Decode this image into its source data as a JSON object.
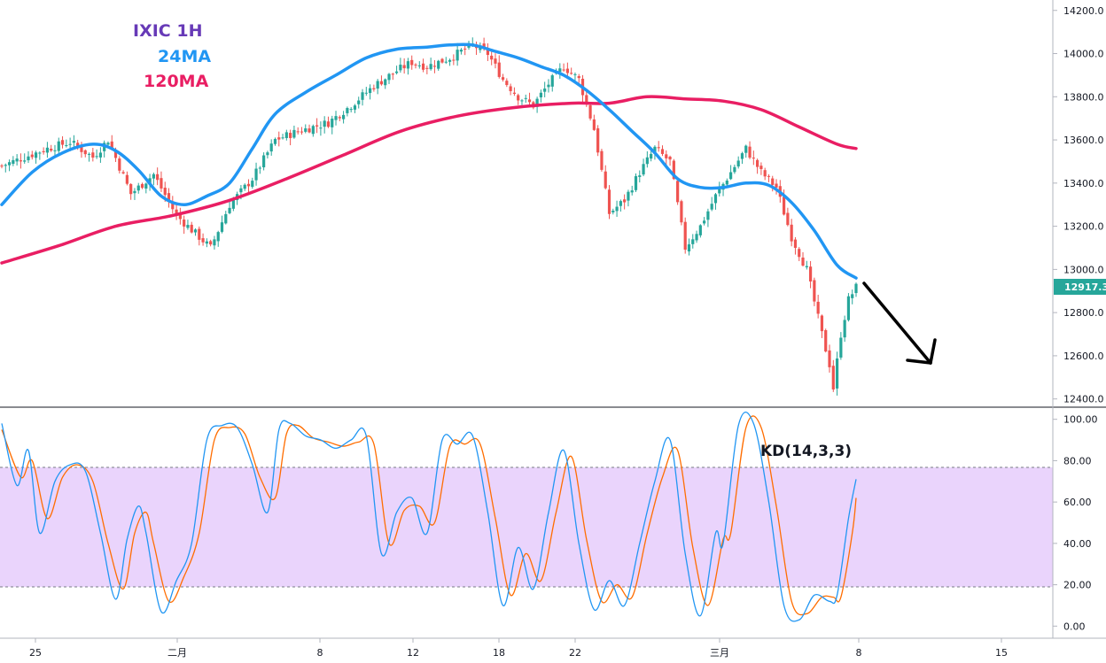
{
  "colors": {
    "up": "#26a69a",
    "down": "#ef5350",
    "ma24": "#2196f3",
    "ma120": "#e91e63",
    "k_line": "#2196f3",
    "d_line": "#ff6d00",
    "kd_band": "#e3c5fb",
    "title": "#673ab7",
    "price_tag": "#26a69a",
    "arrow": "#000000"
  },
  "chart_data": [
    {
      "type": "candlestick",
      "title": "IXIC 1H",
      "legend": [
        {
          "label": "IXIC 1H",
          "color": "#673ab7"
        },
        {
          "label": "24MA",
          "color": "#2196f3"
        },
        {
          "label": "120MA",
          "color": "#e91e63"
        }
      ],
      "legend_position": "top-left",
      "ylim": [
        12370,
        14240
      ],
      "y_ticks": [
        "12400.0",
        "12600.0",
        "12800.0",
        "13000.0",
        "13200.0",
        "13400.0",
        "13600.0",
        "13800.0",
        "14000.0",
        "14200.0"
      ],
      "x_ticks": [
        "25",
        "二月",
        "8",
        "12",
        "18",
        "22",
        "三月",
        "8",
        "15"
      ],
      "last_price": "12917.3",
      "anchors": [
        [
          0,
          13480
        ],
        [
          6,
          13520
        ],
        [
          12,
          13560
        ],
        [
          18,
          13590
        ],
        [
          24,
          13520
        ],
        [
          28,
          13600
        ],
        [
          34,
          13350
        ],
        [
          40,
          13440
        ],
        [
          46,
          13250
        ],
        [
          52,
          13150
        ],
        [
          55,
          13100
        ],
        [
          60,
          13300
        ],
        [
          66,
          13420
        ],
        [
          72,
          13600
        ],
        [
          78,
          13640
        ],
        [
          86,
          13680
        ],
        [
          92,
          13760
        ],
        [
          98,
          13850
        ],
        [
          104,
          13920
        ],
        [
          108,
          13960
        ],
        [
          112,
          13940
        ],
        [
          118,
          13980
        ],
        [
          124,
          14040
        ],
        [
          128,
          14000
        ],
        [
          132,
          13880
        ],
        [
          136,
          13800
        ],
        [
          140,
          13760
        ],
        [
          144,
          13860
        ],
        [
          148,
          13940
        ],
        [
          152,
          13880
        ],
        [
          156,
          13650
        ],
        [
          160,
          13260
        ],
        [
          164,
          13320
        ],
        [
          168,
          13450
        ],
        [
          172,
          13560
        ],
        [
          176,
          13500
        ],
        [
          180,
          13100
        ],
        [
          184,
          13200
        ],
        [
          188,
          13340
        ],
        [
          192,
          13450
        ],
        [
          196,
          13560
        ],
        [
          200,
          13450
        ],
        [
          204,
          13380
        ],
        [
          208,
          13150
        ],
        [
          212,
          13000
        ],
        [
          214,
          12850
        ],
        [
          216,
          12700
        ],
        [
          218,
          12560
        ],
        [
          219,
          12450
        ],
        [
          221,
          12700
        ],
        [
          223,
          12860
        ],
        [
          225,
          12917
        ]
      ],
      "ma24": [
        [
          0,
          13300
        ],
        [
          8,
          13450
        ],
        [
          16,
          13540
        ],
        [
          24,
          13580
        ],
        [
          30,
          13550
        ],
        [
          36,
          13460
        ],
        [
          42,
          13340
        ],
        [
          48,
          13300
        ],
        [
          54,
          13340
        ],
        [
          60,
          13400
        ],
        [
          66,
          13560
        ],
        [
          72,
          13720
        ],
        [
          80,
          13820
        ],
        [
          88,
          13900
        ],
        [
          96,
          13980
        ],
        [
          104,
          14020
        ],
        [
          112,
          14030
        ],
        [
          118,
          14040
        ],
        [
          124,
          14040
        ],
        [
          130,
          14010
        ],
        [
          136,
          13980
        ],
        [
          142,
          13940
        ],
        [
          148,
          13900
        ],
        [
          154,
          13830
        ],
        [
          160,
          13740
        ],
        [
          166,
          13640
        ],
        [
          172,
          13540
        ],
        [
          178,
          13420
        ],
        [
          184,
          13380
        ],
        [
          190,
          13380
        ],
        [
          196,
          13400
        ],
        [
          202,
          13390
        ],
        [
          208,
          13310
        ],
        [
          214,
          13180
        ],
        [
          220,
          13020
        ],
        [
          225,
          12960
        ]
      ],
      "ma120": [
        [
          0,
          13030
        ],
        [
          15,
          13110
        ],
        [
          30,
          13200
        ],
        [
          45,
          13250
        ],
        [
          60,
          13320
        ],
        [
          75,
          13420
        ],
        [
          90,
          13530
        ],
        [
          105,
          13640
        ],
        [
          120,
          13710
        ],
        [
          135,
          13750
        ],
        [
          150,
          13770
        ],
        [
          160,
          13770
        ],
        [
          170,
          13800
        ],
        [
          180,
          13790
        ],
        [
          190,
          13780
        ],
        [
          200,
          13740
        ],
        [
          210,
          13660
        ],
        [
          220,
          13580
        ],
        [
          225,
          13560
        ]
      ]
    },
    {
      "type": "line",
      "title": "KD(14,3,3)",
      "ylim": [
        -5,
        105
      ],
      "y_ticks": [
        "0.00",
        "20.00",
        "40.00",
        "60.00",
        "80.00",
        "100.00"
      ],
      "band": [
        20,
        80
      ],
      "k_anchors": [
        [
          0,
          98
        ],
        [
          4,
          68
        ],
        [
          7,
          85
        ],
        [
          10,
          45
        ],
        [
          14,
          70
        ],
        [
          18,
          78
        ],
        [
          22,
          75
        ],
        [
          26,
          45
        ],
        [
          30,
          13
        ],
        [
          33,
          42
        ],
        [
          36,
          58
        ],
        [
          38,
          45
        ],
        [
          42,
          7
        ],
        [
          46,
          22
        ],
        [
          50,
          40
        ],
        [
          54,
          90
        ],
        [
          58,
          97
        ],
        [
          62,
          96
        ],
        [
          66,
          78
        ],
        [
          70,
          55
        ],
        [
          73,
          95
        ],
        [
          76,
          98
        ],
        [
          80,
          92
        ],
        [
          84,
          90
        ],
        [
          88,
          86
        ],
        [
          92,
          90
        ],
        [
          96,
          92
        ],
        [
          100,
          35
        ],
        [
          104,
          55
        ],
        [
          108,
          62
        ],
        [
          112,
          45
        ],
        [
          116,
          90
        ],
        [
          120,
          88
        ],
        [
          124,
          92
        ],
        [
          128,
          55
        ],
        [
          132,
          10
        ],
        [
          136,
          38
        ],
        [
          140,
          18
        ],
        [
          144,
          55
        ],
        [
          148,
          85
        ],
        [
          152,
          40
        ],
        [
          156,
          8
        ],
        [
          160,
          22
        ],
        [
          164,
          10
        ],
        [
          168,
          40
        ],
        [
          172,
          70
        ],
        [
          176,
          90
        ],
        [
          180,
          35
        ],
        [
          184,
          5
        ],
        [
          188,
          45
        ],
        [
          190,
          40
        ],
        [
          194,
          97
        ],
        [
          198,
          98
        ],
        [
          202,
          60
        ],
        [
          206,
          10
        ],
        [
          210,
          3
        ],
        [
          214,
          15
        ],
        [
          218,
          12
        ],
        [
          220,
          15
        ],
        [
          223,
          52
        ],
        [
          225,
          71
        ]
      ],
      "d_anchors": [
        [
          0,
          95
        ],
        [
          5,
          72
        ],
        [
          8,
          80
        ],
        [
          12,
          52
        ],
        [
          16,
          72
        ],
        [
          20,
          78
        ],
        [
          24,
          70
        ],
        [
          28,
          40
        ],
        [
          32,
          18
        ],
        [
          35,
          45
        ],
        [
          38,
          55
        ],
        [
          40,
          40
        ],
        [
          44,
          12
        ],
        [
          48,
          24
        ],
        [
          52,
          45
        ],
        [
          56,
          90
        ],
        [
          60,
          96
        ],
        [
          64,
          93
        ],
        [
          68,
          72
        ],
        [
          72,
          62
        ],
        [
          75,
          93
        ],
        [
          78,
          97
        ],
        [
          82,
          91
        ],
        [
          86,
          89
        ],
        [
          90,
          87
        ],
        [
          94,
          89
        ],
        [
          98,
          88
        ],
        [
          102,
          40
        ],
        [
          106,
          56
        ],
        [
          110,
          58
        ],
        [
          114,
          50
        ],
        [
          118,
          87
        ],
        [
          122,
          88
        ],
        [
          126,
          88
        ],
        [
          130,
          52
        ],
        [
          134,
          15
        ],
        [
          138,
          35
        ],
        [
          142,
          22
        ],
        [
          146,
          55
        ],
        [
          150,
          82
        ],
        [
          154,
          42
        ],
        [
          158,
          12
        ],
        [
          162,
          20
        ],
        [
          166,
          14
        ],
        [
          170,
          45
        ],
        [
          174,
          72
        ],
        [
          178,
          85
        ],
        [
          182,
          38
        ],
        [
          186,
          10
        ],
        [
          190,
          42
        ],
        [
          192,
          45
        ],
        [
          196,
          96
        ],
        [
          200,
          96
        ],
        [
          204,
          58
        ],
        [
          208,
          12
        ],
        [
          212,
          6
        ],
        [
          216,
          14
        ],
        [
          219,
          14
        ],
        [
          221,
          14
        ],
        [
          224,
          45
        ],
        [
          225,
          62
        ]
      ]
    }
  ]
}
